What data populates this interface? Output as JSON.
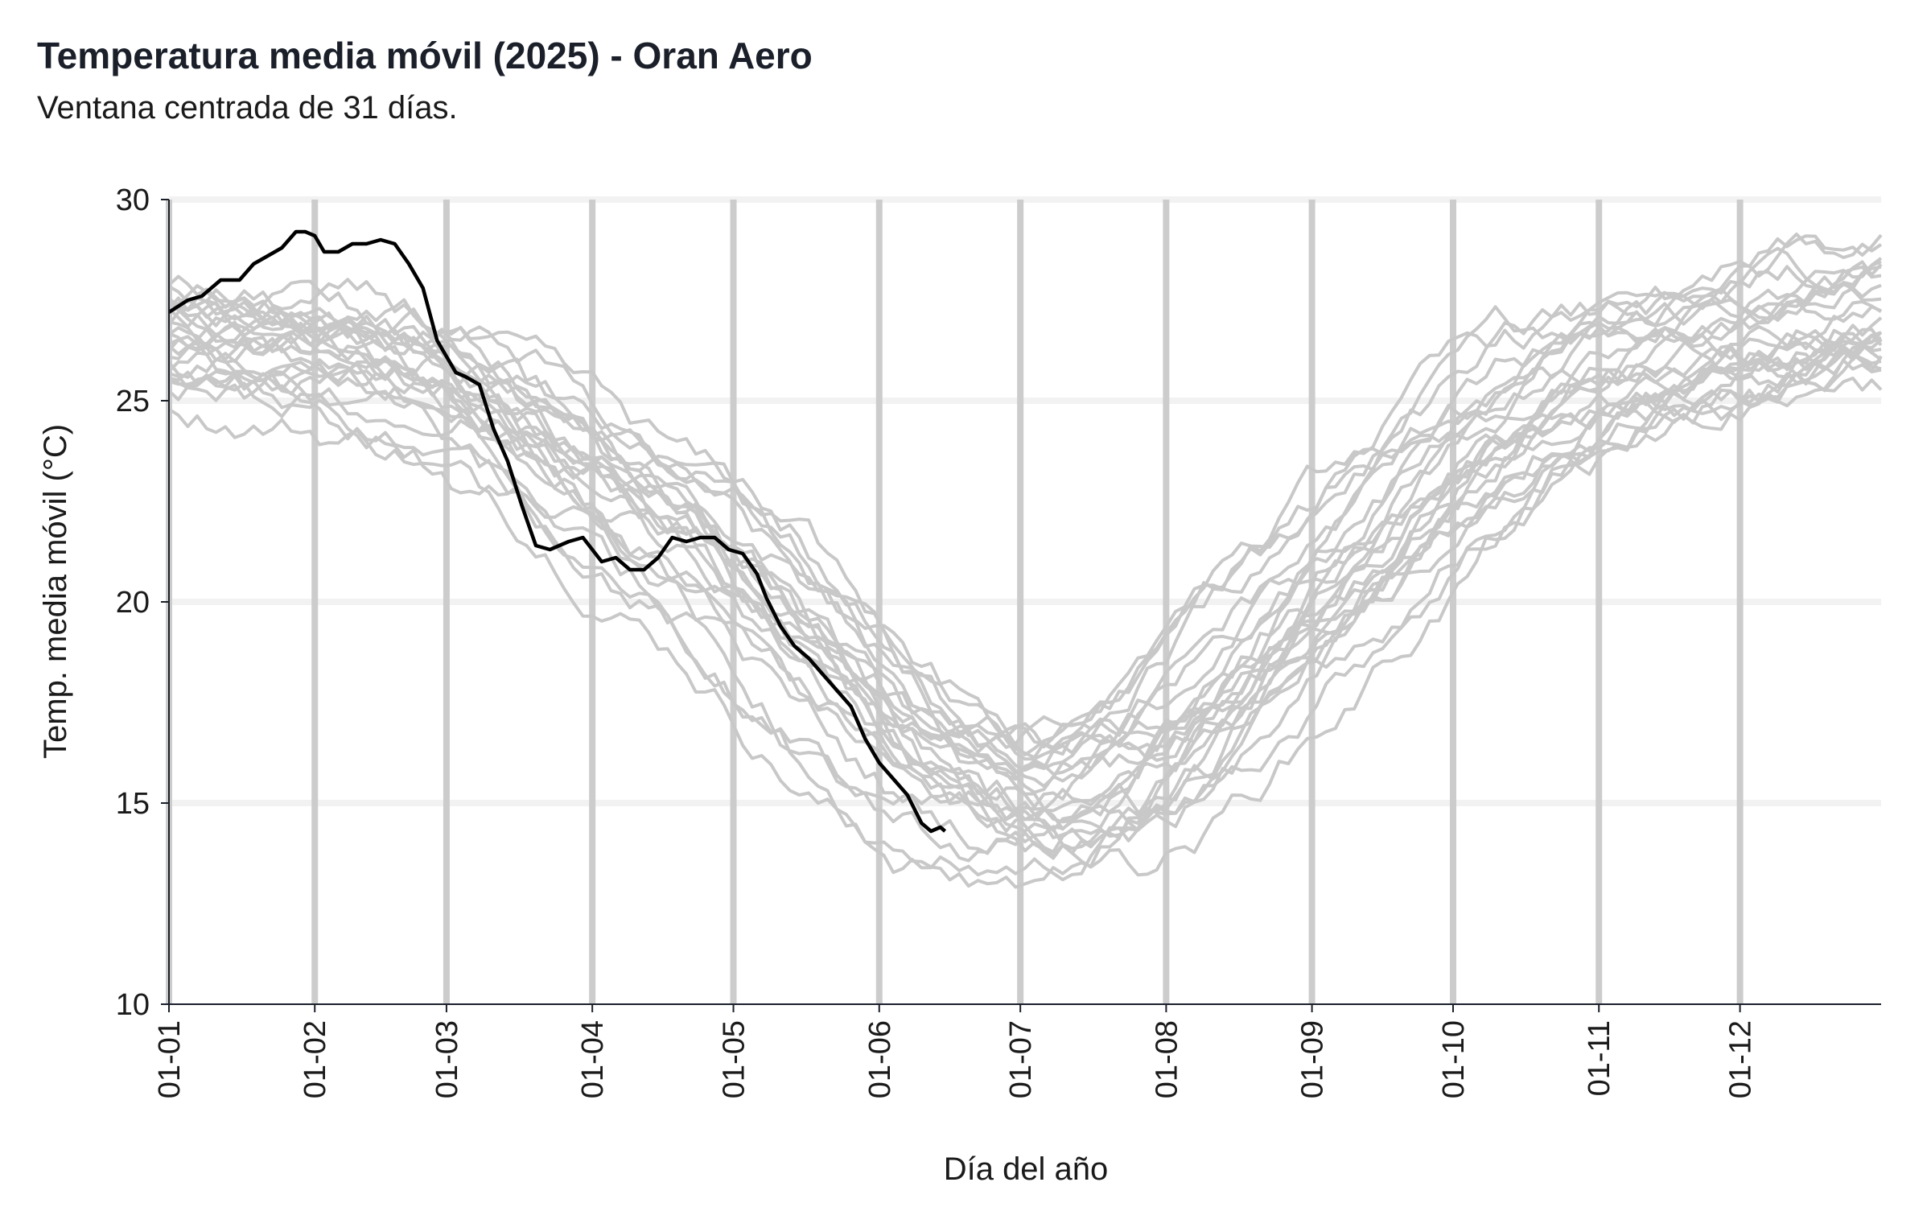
{
  "header": {
    "title": "Temperatura media móvil (2025) - Oran Aero",
    "subtitle": "Ventana centrada de 31 días."
  },
  "chart_data": {
    "type": "line",
    "title": "Temperatura media móvil (2025) - Oran Aero",
    "subtitle": "Ventana centrada de 31 días.",
    "xlabel": "Día del año",
    "ylabel": "Temp. media móvil (°C)",
    "ylim": [
      10,
      30
    ],
    "xlim": [
      1,
      365
    ],
    "yticks": [
      10,
      15,
      20,
      25,
      30
    ],
    "xticks": [
      {
        "label": "01-01",
        "day": 1
      },
      {
        "label": "01-02",
        "day": 32
      },
      {
        "label": "01-03",
        "day": 60
      },
      {
        "label": "01-04",
        "day": 91
      },
      {
        "label": "01-05",
        "day": 121
      },
      {
        "label": "01-06",
        "day": 152
      },
      {
        "label": "01-07",
        "day": 182
      },
      {
        "label": "01-08",
        "day": 213
      },
      {
        "label": "01-09",
        "day": 244
      },
      {
        "label": "01-10",
        "day": 274
      },
      {
        "label": "01-11",
        "day": 305
      },
      {
        "label": "01-12",
        "day": 335
      }
    ],
    "grid": true,
    "colors": {
      "history": "#c8c8c8",
      "current": "#000000",
      "vgrid": "#cccccc",
      "hgrid": "#f2f2f2",
      "axis": "#1a1f29"
    },
    "history_envelope": {
      "day": [
        1,
        32,
        60,
        75,
        91,
        105,
        121,
        135,
        152,
        165,
        182,
        198,
        213,
        228,
        244,
        259,
        274,
        290,
        305,
        320,
        335,
        350,
        365
      ],
      "mean": [
        26.4,
        26.0,
        25.3,
        24.2,
        23.0,
        21.9,
        20.5,
        18.8,
        16.8,
        15.6,
        14.9,
        15.0,
        16.0,
        17.7,
        19.4,
        21.2,
        22.9,
        24.4,
        25.3,
        25.7,
        26.1,
        26.6,
        26.9
      ],
      "spread": [
        1.3,
        1.3,
        1.3,
        1.3,
        1.3,
        1.4,
        1.6,
        1.8,
        1.7,
        1.6,
        1.5,
        1.7,
        1.9,
        2.0,
        2.0,
        1.9,
        1.8,
        1.5,
        1.3,
        1.3,
        1.4,
        1.5,
        1.5
      ],
      "years": 25
    },
    "series": [
      {
        "name": "2025",
        "x": [
          1,
          5,
          8,
          12,
          16,
          19,
          22,
          25,
          28,
          30,
          32,
          34,
          37,
          40,
          43,
          46,
          49,
          52,
          55,
          58,
          60,
          62,
          64,
          67,
          70,
          73,
          76,
          79,
          82,
          86,
          89,
          93,
          96,
          99,
          102,
          105,
          108,
          111,
          114,
          117,
          120,
          123,
          126,
          128,
          131,
          134,
          137,
          140,
          143,
          146,
          149,
          152,
          155,
          158,
          161,
          163,
          165,
          166
        ],
        "values": [
          27.2,
          27.5,
          27.6,
          28.0,
          28.0,
          28.4,
          28.6,
          28.8,
          29.2,
          29.2,
          29.1,
          28.7,
          28.7,
          28.9,
          28.9,
          29.0,
          28.9,
          28.4,
          27.8,
          26.5,
          26.1,
          25.7,
          25.6,
          25.4,
          24.3,
          23.5,
          22.4,
          21.4,
          21.3,
          21.5,
          21.6,
          21.0,
          21.1,
          20.8,
          20.8,
          21.1,
          21.6,
          21.5,
          21.6,
          21.6,
          21.3,
          21.2,
          20.7,
          20.1,
          19.4,
          18.9,
          18.6,
          18.2,
          17.8,
          17.4,
          16.6,
          16.0,
          15.6,
          15.2,
          14.5,
          14.3,
          14.4,
          14.3
        ]
      }
    ]
  }
}
